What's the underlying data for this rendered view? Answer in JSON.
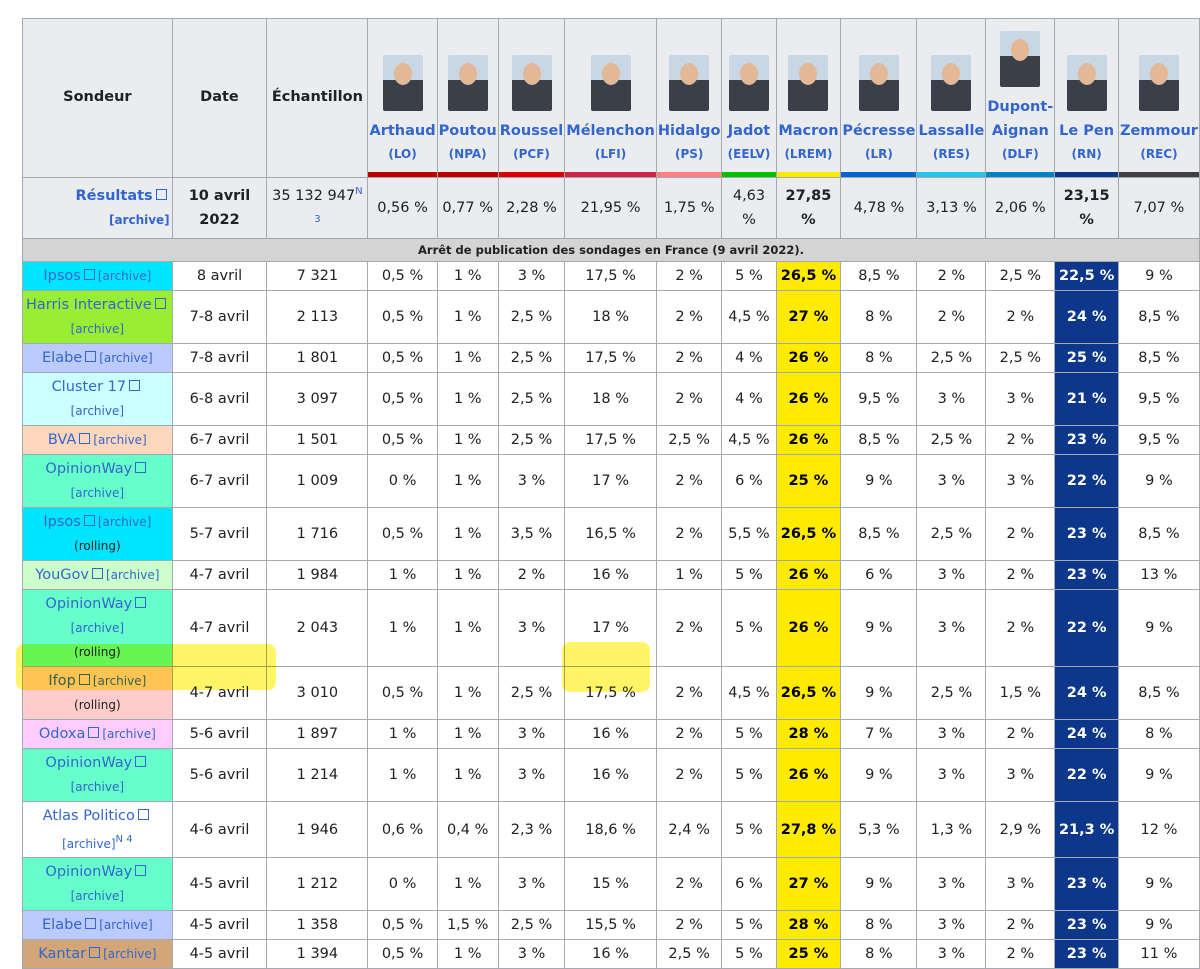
{
  "header": {
    "sondeur": "Sondeur",
    "date": "Date",
    "echantillon": "Échantillon"
  },
  "candidates": [
    {
      "name": "Arthaud",
      "party": "(LO)",
      "color": "#bb0000"
    },
    {
      "name": "Poutou",
      "party": "(NPA)",
      "color": "#bb0000"
    },
    {
      "name": "Roussel",
      "party": "(PCF)",
      "color": "#dd0000"
    },
    {
      "name": "Mélenchon",
      "party": "(LFI)",
      "color": "#cc2443"
    },
    {
      "name": "Hidalgo",
      "party": "(PS)",
      "color": "#ff8080"
    },
    {
      "name": "Jadot",
      "party": "(EELV)",
      "color": "#00c000"
    },
    {
      "name": "Macron",
      "party": "(LREM)",
      "color": "#ffeb00",
      "cell_color": "#ffeb00",
      "cell_text": "#000000"
    },
    {
      "name": "Pécresse",
      "party": "(LR)",
      "color": "#0066cc"
    },
    {
      "name": "Lassalle",
      "party": "(RES)",
      "color": "#26c4ec"
    },
    {
      "name": "Dupont-Aignan",
      "party": "(DLF)",
      "color": "#0082c4"
    },
    {
      "name": "Le Pen",
      "party": "(RN)",
      "color": "#0d378a",
      "cell_color": "#0d378a",
      "cell_text": "#ffffff"
    },
    {
      "name": "Zemmour",
      "party": "(REC)",
      "color": "#404040"
    }
  ],
  "results": {
    "label": "Résultats",
    "archive": "[archive]",
    "date": "10 avril 2022",
    "sample": "35 132 947",
    "note": "N 3",
    "values": [
      "0,56 %",
      "0,77 %",
      "2,28 %",
      "21,95 %",
      "1,75 %",
      "4,63 %",
      "27,85 %",
      "4,78 %",
      "3,13 %",
      "2,06 %",
      "23,15 %",
      "7,07 %"
    ]
  },
  "notice": "Arrêt de publication des sondages en France (9 avril 2022).",
  "rows": [
    {
      "pollster": "Ipsos",
      "archive": "[archive]",
      "color": "#00e5ff",
      "date": "8 avril",
      "sample": "7 321",
      "values": [
        "0,5 %",
        "1 %",
        "3 %",
        "17,5 %",
        "2 %",
        "5 %",
        "26,5 %",
        "8,5 %",
        "2 %",
        "2,5 %",
        "22,5 %",
        "9 %"
      ]
    },
    {
      "pollster": "Harris Interactive",
      "archive": "[archive]",
      "color": "#99ee33",
      "date": "7-8 avril",
      "sample": "2 113",
      "values": [
        "0,5 %",
        "1 %",
        "2,5 %",
        "18 %",
        "2 %",
        "4,5 %",
        "27 %",
        "8 %",
        "2 %",
        "2 %",
        "24 %",
        "8,5 %"
      ]
    },
    {
      "pollster": "Elabe",
      "archive": "[archive]",
      "color": "#bccbff",
      "date": "7-8 avril",
      "sample": "1 801",
      "values": [
        "0,5 %",
        "1 %",
        "2,5 %",
        "17,5 %",
        "2 %",
        "4 %",
        "26 %",
        "8 %",
        "2,5 %",
        "2,5 %",
        "25 %",
        "8,5 %"
      ]
    },
    {
      "pollster": "Cluster 17",
      "archive": "[archive]",
      "color": "#ccffff",
      "date": "6-8 avril",
      "sample": "3 097",
      "values": [
        "0,5 %",
        "1 %",
        "2,5 %",
        "18 %",
        "2 %",
        "4 %",
        "26 %",
        "9,5 %",
        "3 %",
        "3 %",
        "21 %",
        "9,5 %"
      ]
    },
    {
      "pollster": "BVA",
      "archive": "[archive]",
      "color": "#ffd7bd",
      "date": "6-7 avril",
      "sample": "1 501",
      "values": [
        "0,5 %",
        "1 %",
        "2,5 %",
        "17,5 %",
        "2,5 %",
        "4,5 %",
        "26 %",
        "8,5 %",
        "2,5 %",
        "2 %",
        "23 %",
        "9,5 %"
      ]
    },
    {
      "pollster": "OpinionWay",
      "archive": "[archive]",
      "color": "#66ffcc",
      "date": "6-7 avril",
      "sample": "1 009",
      "values": [
        "0 %",
        "1 %",
        "3 %",
        "17 %",
        "2 %",
        "6 %",
        "25 %",
        "9 %",
        "3 %",
        "3 %",
        "22 %",
        "9 %"
      ]
    },
    {
      "pollster": "Ipsos",
      "archive": "[archive]",
      "sub": "(rolling)",
      "color": "#00e5ff",
      "date": "5-7 avril",
      "sample": "1 716",
      "values": [
        "0,5 %",
        "1 %",
        "3,5 %",
        "16,5 %",
        "2 %",
        "5,5 %",
        "26,5 %",
        "8,5 %",
        "2,5 %",
        "2 %",
        "23 %",
        "8,5 %"
      ]
    },
    {
      "pollster": "YouGov",
      "archive": "[archive]",
      "color": "#ccffcc",
      "date": "4-7 avril",
      "sample": "1 984",
      "values": [
        "1 %",
        "1 %",
        "2 %",
        "16 %",
        "1 %",
        "5 %",
        "26 %",
        "6 %",
        "3 %",
        "2 %",
        "23 %",
        "13 %"
      ]
    },
    {
      "pollster": "OpinionWay",
      "archive": "[archive]",
      "sub": "(rolling)",
      "color": "#66ffcc",
      "date": "4-7 avril",
      "sample": "2 043",
      "values": [
        "1 %",
        "1 %",
        "3 %",
        "17 %",
        "2 %",
        "5 %",
        "26 %",
        "9 %",
        "3 %",
        "2 %",
        "22 %",
        "9 %"
      ]
    },
    {
      "pollster": "Ifop",
      "archive": "[archive]",
      "sub": "(rolling)",
      "color": "#ffcccc",
      "date": "4-7 avril",
      "sample": "3 010",
      "values": [
        "0,5 %",
        "1 %",
        "2,5 %",
        "17,5 %",
        "2 %",
        "4,5 %",
        "26,5 %",
        "9 %",
        "2,5 %",
        "1,5 %",
        "24 %",
        "8,5 %"
      ]
    },
    {
      "pollster": "Odoxa",
      "archive": "[archive]",
      "color": "#ffccff",
      "date": "5-6 avril",
      "sample": "1 897",
      "values": [
        "1 %",
        "1 %",
        "3 %",
        "16 %",
        "2 %",
        "5 %",
        "28 %",
        "7 %",
        "3 %",
        "2 %",
        "24 %",
        "8 %"
      ]
    },
    {
      "pollster": "OpinionWay",
      "archive": "[archive]",
      "color": "#66ffcc",
      "date": "5-6 avril",
      "sample": "1 214",
      "values": [
        "1 %",
        "1 %",
        "3 %",
        "16 %",
        "2 %",
        "5 %",
        "26 %",
        "9 %",
        "3 %",
        "3 %",
        "22 %",
        "9 %"
      ]
    },
    {
      "pollster": "Atlas Politico",
      "archive": "[archive]",
      "note": "N 4",
      "color": "#ffffff",
      "date": "4-6 avril",
      "sample": "1 946",
      "values": [
        "0,6 %",
        "0,4 %",
        "2,3 %",
        "18,6 %",
        "2,4 %",
        "5 %",
        "27,8 %",
        "5,3 %",
        "1,3 %",
        "2,9 %",
        "21,3 %",
        "12 %"
      ]
    },
    {
      "pollster": "OpinionWay",
      "archive": "[archive]",
      "color": "#66ffcc",
      "date": "4-5 avril",
      "sample": "1 212",
      "values": [
        "0 %",
        "1 %",
        "3 %",
        "15 %",
        "2 %",
        "6 %",
        "27 %",
        "9 %",
        "3 %",
        "3 %",
        "23 %",
        "9 %"
      ]
    },
    {
      "pollster": "Elabe",
      "archive": "[archive]",
      "color": "#bccbff",
      "date": "4-5 avril",
      "sample": "1 358",
      "values": [
        "0,5 %",
        "1,5 %",
        "2,5 %",
        "15,5 %",
        "2 %",
        "5 %",
        "28 %",
        "8 %",
        "3 %",
        "2 %",
        "23 %",
        "9 %"
      ]
    },
    {
      "pollster": "Kantar",
      "archive": "[archive]",
      "color": "#d2a679",
      "date": "4-5 avril",
      "sample": "1 394",
      "values": [
        "0,5 %",
        "1 %",
        "3 %",
        "16 %",
        "2,5 %",
        "5 %",
        "25 %",
        "8 %",
        "3 %",
        "2 %",
        "23 %",
        "11 %"
      ]
    }
  ]
}
